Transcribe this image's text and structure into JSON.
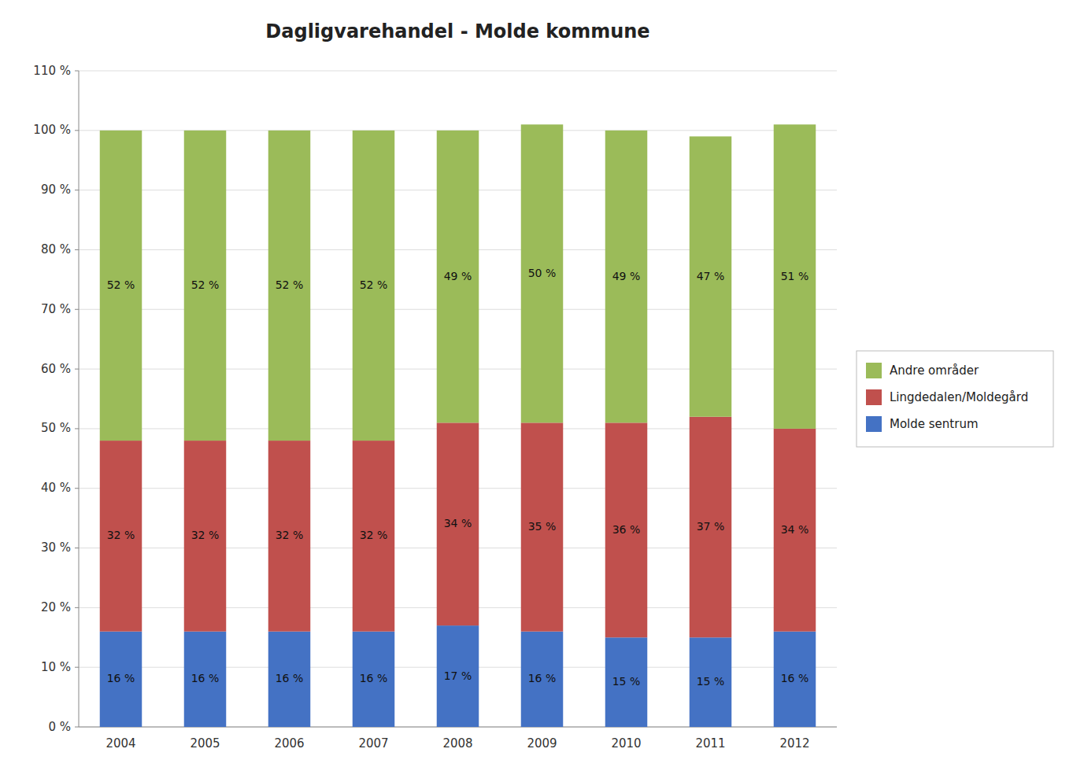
{
  "chart_data": {
    "type": "bar",
    "title": "Dagligvarehandel - Molde kommune",
    "categories": [
      "2004",
      "2005",
      "2006",
      "2007",
      "2008",
      "2009",
      "2010",
      "2011",
      "2012"
    ],
    "series": [
      {
        "name": "Molde sentrum",
        "color": "#4472C4",
        "values": [
          16,
          16,
          16,
          16,
          17,
          16,
          15,
          15,
          16
        ],
        "value_labels": [
          "16 %",
          "16 %",
          "16 %",
          "16 %",
          "17 %",
          "16 %",
          "15 %",
          "15 %",
          "16 %"
        ]
      },
      {
        "name": "Lingdedalen/Moldegård",
        "color": "#C0504D",
        "values": [
          32,
          32,
          32,
          32,
          34,
          35,
          36,
          37,
          34
        ],
        "value_labels": [
          "32 %",
          "32 %",
          "32 %",
          "32 %",
          "34 %",
          "35 %",
          "36 %",
          "37 %",
          "34 %"
        ]
      },
      {
        "name": "Andre områder",
        "color": "#9BBB59",
        "values": [
          52,
          52,
          52,
          52,
          49,
          50,
          49,
          47,
          51
        ],
        "value_labels": [
          "52 %",
          "52 %",
          "52 %",
          "52 %",
          "49 %",
          "50 %",
          "49 %",
          "47 %",
          "51 %"
        ]
      }
    ],
    "ylim": [
      0,
      110
    ],
    "yticks": [
      {
        "value": 0,
        "label": "0 %"
      },
      {
        "value": 10,
        "label": "10 %"
      },
      {
        "value": 20,
        "label": "20 %"
      },
      {
        "value": 30,
        "label": "30 %"
      },
      {
        "value": 40,
        "label": "40 %"
      },
      {
        "value": 50,
        "label": "50 %"
      },
      {
        "value": 60,
        "label": "60 %"
      },
      {
        "value": 70,
        "label": "70 %"
      },
      {
        "value": 80,
        "label": "80 %"
      },
      {
        "value": 90,
        "label": "90 %"
      },
      {
        "value": 100,
        "label": "100 %"
      },
      {
        "value": 110,
        "label": "110 %"
      }
    ],
    "stacked": true,
    "data_labels": true,
    "grid": true,
    "legend": "right"
  }
}
